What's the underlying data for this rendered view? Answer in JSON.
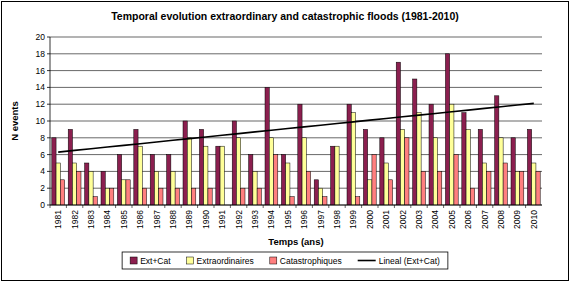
{
  "chart_data": {
    "type": "bar",
    "title": "Temporal evolution extraordinary and catastrophic floods (1981-2010)",
    "x_label": "Temps (ans)",
    "y_label": "N events",
    "categories": [
      "1981",
      "1982",
      "1983",
      "1984",
      "1985",
      "1986",
      "1987",
      "1988",
      "1989",
      "1990",
      "1991",
      "1992",
      "1993",
      "1994",
      "1995",
      "1996",
      "1997",
      "1998",
      "1999",
      "2000",
      "2001",
      "2002",
      "2003",
      "2004",
      "2005",
      "2006",
      "2007",
      "2008",
      "2009",
      "2010"
    ],
    "series": [
      {
        "name": "Ext+Cat",
        "type": "bar",
        "color": "#8b1f4f",
        "values": [
          8,
          9,
          5,
          4,
          6,
          9,
          6,
          6,
          10,
          9,
          7,
          10,
          6,
          14,
          6,
          12,
          3,
          7,
          12,
          9,
          8,
          17,
          15,
          12,
          18,
          11,
          9,
          13,
          8,
          9
        ]
      },
      {
        "name": "Extraordinaires",
        "type": "bar",
        "color": "#ffff99",
        "values": [
          5,
          5,
          4,
          2,
          3,
          7,
          4,
          4,
          8,
          7,
          7,
          8,
          4,
          8,
          5,
          8,
          2,
          7,
          11,
          3,
          5,
          9,
          11,
          8,
          12,
          9,
          5,
          8,
          4,
          5
        ]
      },
      {
        "name": "Catastrophiques",
        "type": "bar",
        "color": "#ff7f7f",
        "values": [
          3,
          4,
          1,
          2,
          3,
          2,
          2,
          2,
          2,
          2,
          0,
          2,
          2,
          6,
          1,
          4,
          1,
          0,
          1,
          6,
          3,
          8,
          4,
          4,
          6,
          2,
          4,
          5,
          4,
          4
        ]
      },
      {
        "name": "Lineal (Ext+Cat)",
        "type": "line",
        "color": "#000000",
        "line_style": "solid",
        "values": [
          6.3,
          6.5,
          6.7,
          6.9,
          7.1,
          7.3,
          7.5,
          7.7,
          7.9,
          8.1,
          8.3,
          8.5,
          8.7,
          8.9,
          9.1,
          9.3,
          9.5,
          9.7,
          9.9,
          10.1,
          10.3,
          10.5,
          10.7,
          10.9,
          11.1,
          11.3,
          11.5,
          11.7,
          11.9,
          12.1
        ]
      }
    ],
    "ylim": [
      0,
      20
    ],
    "yticks": [
      0,
      2,
      4,
      6,
      8,
      10,
      12,
      14,
      16,
      18,
      20
    ],
    "grid": true,
    "legend": "bottom"
  }
}
